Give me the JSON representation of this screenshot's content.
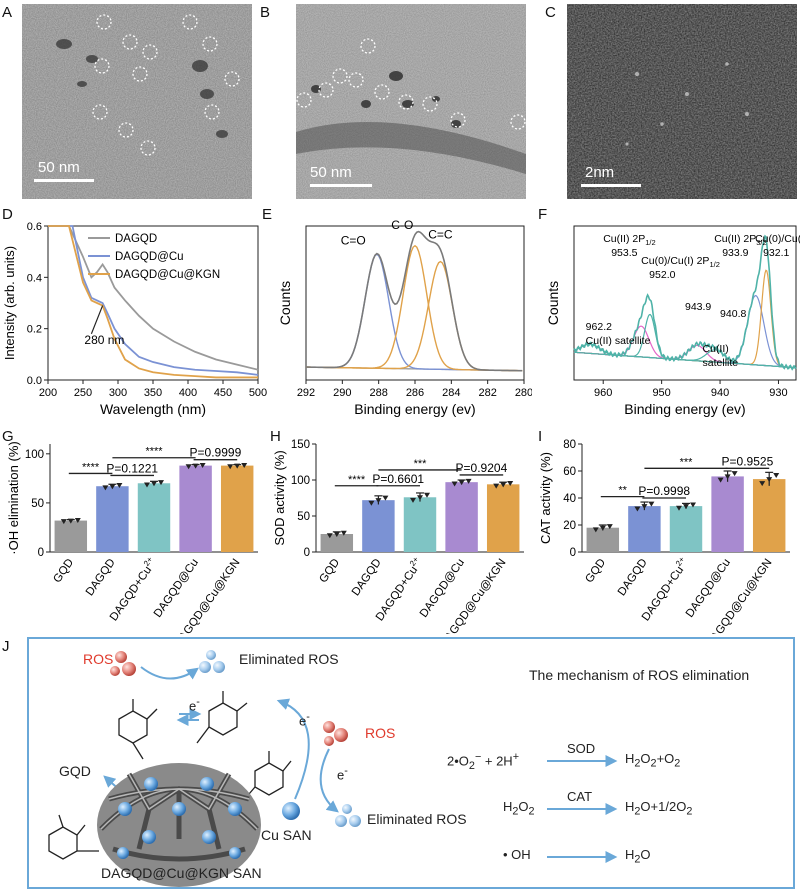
{
  "panels": {
    "a": {
      "label": "A",
      "scalebar": "50 nm"
    },
    "b": {
      "label": "B",
      "scalebar": "50 nm"
    },
    "c": {
      "label": "C",
      "scalebar": "2nm"
    },
    "d": {
      "label": "D"
    },
    "e": {
      "label": "E"
    },
    "f": {
      "label": "F"
    },
    "g": {
      "label": "G"
    },
    "h": {
      "label": "H"
    },
    "i": {
      "label": "I"
    },
    "j": {
      "label": "J"
    }
  },
  "colors": {
    "gray": "#9a9a9a",
    "blue": "#7b92d4",
    "cyan": "#7fc4c4",
    "purple": "#a88ad0",
    "orange": "#e0a24a",
    "teal": "#4fb3a8",
    "pink": "#e266c8",
    "accent": "#6aa8d8",
    "ros_red": "#e03a2c"
  },
  "chart_data": [
    {
      "id": "D",
      "type": "line",
      "xlabel": "Wavelength (nm)",
      "ylabel": "Intensity (arb. units)",
      "xlim": [
        200,
        500
      ],
      "ylim": [
        0,
        0.6
      ],
      "xticks": [
        "200",
        "250",
        "300",
        "350",
        "400",
        "450",
        "500"
      ],
      "yticks": [
        "0.0",
        "0.2",
        "0.4",
        "0.6"
      ],
      "annotation": "280 nm",
      "series": [
        {
          "name": "DAGQD",
          "color": "#9a9a9a",
          "x": [
            200,
            230,
            250,
            262,
            270,
            278,
            285,
            295,
            310,
            330,
            350,
            380,
            410,
            440,
            470,
            500
          ],
          "y": [
            0.6,
            0.6,
            0.48,
            0.4,
            0.42,
            0.45,
            0.42,
            0.36,
            0.31,
            0.25,
            0.2,
            0.15,
            0.11,
            0.08,
            0.06,
            0.04
          ]
        },
        {
          "name": "DAGQD@Cu",
          "color": "#7b92d4",
          "x": [
            200,
            235,
            250,
            262,
            270,
            278,
            285,
            295,
            310,
            330,
            350,
            380,
            410,
            440,
            470,
            500
          ],
          "y": [
            0.6,
            0.6,
            0.4,
            0.32,
            0.31,
            0.3,
            0.26,
            0.2,
            0.14,
            0.09,
            0.07,
            0.05,
            0.04,
            0.035,
            0.03,
            0.02
          ]
        },
        {
          "name": "DAGQD@Cu@KGN",
          "color": "#e0a24a",
          "x": [
            200,
            230,
            250,
            262,
            270,
            278,
            285,
            295,
            310,
            330,
            350,
            380,
            410,
            440,
            470,
            500
          ],
          "y": [
            0.6,
            0.6,
            0.38,
            0.31,
            0.3,
            0.29,
            0.24,
            0.16,
            0.08,
            0.045,
            0.03,
            0.02,
            0.015,
            0.01,
            0.01,
            0.01
          ]
        }
      ]
    },
    {
      "id": "E",
      "type": "line",
      "xlabel": "Binding energy (ev)",
      "ylabel": "Counts",
      "xlim": [
        292,
        280
      ],
      "xticks": [
        "292",
        "290",
        "288",
        "286",
        "284",
        "282",
        "280"
      ],
      "peak_labels": [
        "C=O",
        "C-O",
        "C=C"
      ],
      "peaks": [
        {
          "name": "C=O",
          "center": 288.1,
          "height": 0.74,
          "color": "#7b92d4"
        },
        {
          "name": "C-O",
          "center": 286.0,
          "height": 0.8,
          "color": "#e0a24a"
        },
        {
          "name": "C=C",
          "center": 284.6,
          "height": 0.7,
          "color": "#e0a24a"
        }
      ]
    },
    {
      "id": "F",
      "type": "line",
      "xlabel": "Binding energy (ev)",
      "ylabel": "Counts",
      "xlim": [
        965,
        927
      ],
      "xticks": [
        "960",
        "950",
        "940",
        "930"
      ],
      "annotations": [
        {
          "line1": "Cu(II) 2P",
          "sub": "1/2",
          "line2": "953.5"
        },
        {
          "line1": "Cu(0)/Cu(I) 2P",
          "sub": "1/2",
          "line2": "952.0"
        },
        {
          "line1": "Cu(II) 2P",
          "sub": "3/2",
          "line2": "933.9"
        },
        {
          "line1": "Cu(0)/Cu(I) 2P",
          "sub": "3/2",
          "line2": "932.1"
        },
        {
          "line1": "962.2",
          "line2": "Cu(II) satellite"
        },
        {
          "line1": "943.9",
          "line2": ""
        },
        {
          "line1": "940.8",
          "line2": ""
        },
        {
          "line1": "Cu(II)",
          "line2": "satellite"
        }
      ]
    },
    {
      "id": "G",
      "type": "bar",
      "ylabel": "·OH elimination (%)",
      "ylim": [
        0,
        110
      ],
      "yticks": [
        "0",
        "50",
        "100"
      ],
      "categories": [
        "GQD",
        "DAGQD",
        "DAGQD+Cu",
        "DAGQD@Cu",
        "DAGQD@Cu@KGN"
      ],
      "values": [
        32,
        67,
        70,
        88,
        88
      ],
      "errors": [
        1,
        2,
        2,
        1,
        1
      ],
      "sig": [
        {
          "from": 0,
          "to": 1,
          "label": "****",
          "y": 80
        },
        {
          "from": 1,
          "to": 2,
          "label": "P=0.1221",
          "y": 78
        },
        {
          "from": 1,
          "to": 3,
          "label": "****",
          "y": 96
        },
        {
          "from": 3,
          "to": 4,
          "label": "P=0.9999",
          "y": 94
        }
      ]
    },
    {
      "id": "H",
      "type": "bar",
      "ylabel": "SOD activity (%)",
      "ylim": [
        0,
        150
      ],
      "yticks": [
        "0",
        "50",
        "100",
        "150"
      ],
      "categories": [
        "GQD",
        "DAGQD",
        "DAGQD+Cu",
        "DAGQD@Cu",
        "DAGQD@Cu@KGN"
      ],
      "values": [
        25,
        72,
        76,
        97,
        94
      ],
      "errors": [
        3,
        6,
        6,
        3,
        3
      ],
      "sig": [
        {
          "from": 0,
          "to": 1,
          "label": "****",
          "y": 92
        },
        {
          "from": 1,
          "to": 2,
          "label": "P=0.6601",
          "y": 92
        },
        {
          "from": 1,
          "to": 3,
          "label": "***",
          "y": 114
        },
        {
          "from": 3,
          "to": 4,
          "label": "P=0.9204",
          "y": 107
        }
      ]
    },
    {
      "id": "I",
      "type": "bar",
      "ylabel": "CAT activity (%)",
      "ylim": [
        0,
        80
      ],
      "yticks": [
        "0",
        "20",
        "40",
        "60",
        "80"
      ],
      "categories": [
        "GQD",
        "DAGQD",
        "DAGQD+Cu",
        "DAGQD@Cu",
        "DAGQD@Cu@KGN"
      ],
      "values": [
        18,
        34,
        34,
        56,
        54
      ],
      "errors": [
        2,
        3,
        2,
        4,
        5
      ],
      "sig": [
        {
          "from": 0,
          "to": 1,
          "label": "**",
          "y": 41
        },
        {
          "from": 1,
          "to": 2,
          "label": "P=0.9998",
          "y": 40
        },
        {
          "from": 1,
          "to": 3,
          "label": "***",
          "y": 62
        },
        {
          "from": 3,
          "to": 4,
          "label": "P=0.9525",
          "y": 62
        }
      ]
    }
  ],
  "tick_sup": "2+",
  "schematic": {
    "ros_top": "ROS",
    "eliminated_top": "Eliminated ROS",
    "e_left": "e",
    "e_right": "e",
    "e_mid": "e",
    "ros_mid": "ROS",
    "eliminated_bottom": "Eliminated ROS",
    "gqd": "GQD",
    "cu_san": "Cu SAN",
    "caption": "DAGQD@Cu@KGN SAN",
    "mechanism_title": "The mechanism of ROS elimination",
    "sod_label": "SOD",
    "cat_label": "CAT",
    "eq1_left": "2•O",
    "eq1_mid": " + 2H",
    "eq1_right_a": "H",
    "eq1_right_b": "O",
    "eq1_right_c": "+O",
    "eq2_left": "H",
    "eq2_right_a": "H",
    "eq2_right_b": "O+1/2O",
    "eq3_left": "• OH",
    "eq3_right_a": "H",
    "eq3_right_b": "O"
  }
}
